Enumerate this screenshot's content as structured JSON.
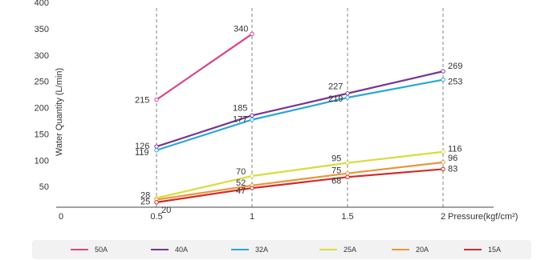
{
  "chart_data": {
    "type": "line",
    "ylabel": "Water Quantity (L/min)",
    "xlabel": "Pressure(kgf/cm²)",
    "xlim": [
      0,
      2.2
    ],
    "ylim": [
      0,
      400
    ],
    "xticks": [
      "0",
      "0.5",
      "1",
      "1.5",
      "2"
    ],
    "yticks": [
      "50",
      "100",
      "150",
      "200",
      "250",
      "300",
      "350",
      "400"
    ],
    "vertical_gridlines": [
      0.5,
      1,
      1.5,
      2
    ],
    "legend_position": "bottom",
    "series": [
      {
        "name": "50A",
        "color": "#d8458a",
        "x": [
          0.5,
          1
        ],
        "values": [
          215,
          340
        ],
        "labels": [
          "215",
          "340"
        ]
      },
      {
        "name": "40A",
        "color": "#7a3690",
        "x": [
          0.5,
          1,
          1.5,
          2
        ],
        "values": [
          126,
          185,
          227,
          269
        ],
        "labels": [
          "126",
          "185",
          "227",
          "269"
        ]
      },
      {
        "name": "32A",
        "color": "#2aa7d9",
        "x": [
          0.5,
          1,
          1.5,
          2
        ],
        "values": [
          119,
          177,
          219,
          253
        ],
        "labels": [
          "119",
          "177",
          "219",
          "253"
        ]
      },
      {
        "name": "25A",
        "color": "#d8dc3a",
        "x": [
          0.5,
          1,
          1.5,
          2
        ],
        "values": [
          28,
          70,
          95,
          116
        ],
        "labels": [
          "28",
          "70",
          "95",
          "116"
        ]
      },
      {
        "name": "20A",
        "color": "#e8963a",
        "x": [
          0.5,
          1,
          1.5,
          2
        ],
        "values": [
          25,
          52,
          75,
          96
        ],
        "labels": [
          "25",
          "52",
          "75",
          "96"
        ]
      },
      {
        "name": "15A",
        "color": "#d42a2a",
        "x": [
          0.5,
          1,
          1.5,
          2
        ],
        "values": [
          20,
          47,
          68,
          83
        ],
        "labels": [
          "20",
          "47",
          "68",
          "83"
        ]
      }
    ]
  }
}
